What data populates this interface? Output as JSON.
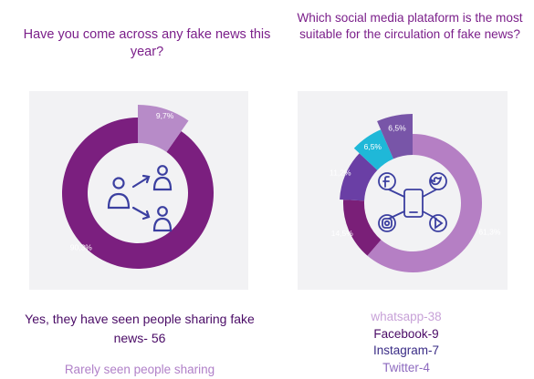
{
  "left_question": "Have you come across any fake news this year?",
  "right_question": "Which social media plataform is the most suitable for the circulation of fake news?",
  "left_caption": "Yes, they have seen people sharing fake news- 56",
  "left_caption_2": "Rarely seen people sharing",
  "platform_list": [
    {
      "text": "whatsapp-38",
      "color": "#c8a2d8"
    },
    {
      "text": "Facebook-9",
      "color": "#4a0b66"
    },
    {
      "text": "Instagram-7",
      "color": "#3a2c86"
    },
    {
      "text": "Twitter-4",
      "color": "#8d6abf"
    }
  ],
  "chart_data": [
    {
      "type": "pie",
      "title": "Have you come across any fake news this year?",
      "slices": [
        {
          "label": "90,3%",
          "value": 90.3,
          "color": "#7b1f7f"
        },
        {
          "label": "9,7%",
          "value": 9.7,
          "color": "#b78bc8"
        }
      ],
      "center_icon": "people-sharing-icon"
    },
    {
      "type": "pie",
      "title": "Which social media plataform is the most suitable for the circulation of fake news?",
      "slices": [
        {
          "label": "61,3%",
          "value": 61.3,
          "color": "#b57fc4"
        },
        {
          "label": "14,5%",
          "value": 14.5,
          "color": "#7a1f78"
        },
        {
          "label": "11,2%",
          "value": 11.2,
          "color": "#6a3fa5"
        },
        {
          "label": "6,5%",
          "value": 6.5,
          "color": "#1fb8d8"
        },
        {
          "label": "6,5%",
          "value": 6.5,
          "color": "#7855a8"
        }
      ],
      "center_icon": "social-media-icons"
    }
  ]
}
